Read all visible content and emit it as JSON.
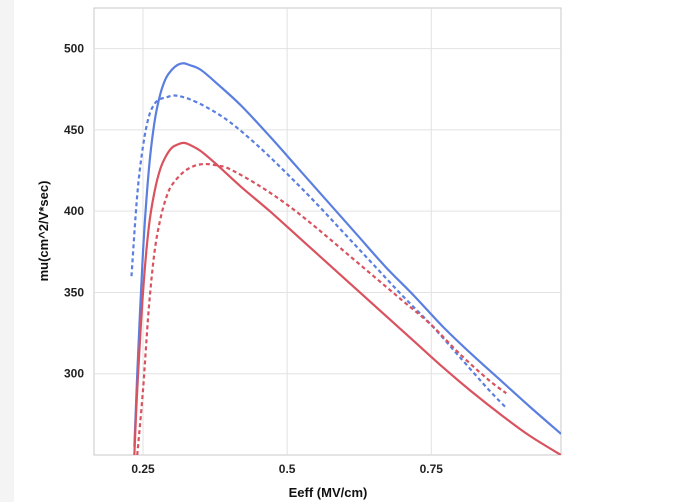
{
  "chart_data": {
    "type": "line",
    "title": "",
    "xlabel": "Eeff (MV/cm)",
    "ylabel": "mu(cm^2/V*sec)",
    "xlim": [
      0.165,
      0.975
    ],
    "ylim": [
      250,
      525
    ],
    "x_ticks": [
      0.25,
      0.5,
      0.75
    ],
    "x_tick_labels": [
      "0.25",
      "0.5",
      "0.75"
    ],
    "y_ticks": [
      300,
      350,
      400,
      450,
      500
    ],
    "y_tick_labels": [
      "300",
      "350",
      "400",
      "450",
      "500"
    ],
    "grid": true,
    "legend": "none",
    "series": [
      {
        "color": "#5b7fe0",
        "style": "solid",
        "x": [
          0.235,
          0.24,
          0.25,
          0.26,
          0.27,
          0.28,
          0.29,
          0.3,
          0.31,
          0.32,
          0.33,
          0.35,
          0.38,
          0.42,
          0.47,
          0.52,
          0.57,
          0.62,
          0.67,
          0.72,
          0.77,
          0.82,
          0.87,
          0.92,
          0.975
        ],
        "y": [
          255,
          300,
          375,
          425,
          455,
          472,
          482,
          487,
          490,
          491,
          490,
          487,
          478,
          465,
          446,
          426,
          406,
          386,
          366,
          348,
          329,
          312,
          296,
          280,
          263
        ]
      },
      {
        "color": "#5b7fe0",
        "style": "dashed",
        "x": [
          0.23,
          0.24,
          0.25,
          0.26,
          0.27,
          0.28,
          0.29,
          0.3,
          0.31,
          0.33,
          0.36,
          0.4,
          0.45,
          0.5,
          0.55,
          0.6,
          0.65,
          0.7,
          0.75,
          0.8,
          0.85,
          0.88
        ],
        "y": [
          360,
          410,
          440,
          458,
          466,
          469,
          470,
          471,
          471,
          469,
          464,
          455,
          440,
          423,
          405,
          386,
          367,
          348,
          330,
          310,
          290,
          279
        ]
      },
      {
        "color": "#d9535f",
        "style": "solid",
        "x": [
          0.235,
          0.24,
          0.25,
          0.26,
          0.27,
          0.28,
          0.29,
          0.3,
          0.31,
          0.32,
          0.33,
          0.35,
          0.38,
          0.42,
          0.47,
          0.52,
          0.57,
          0.62,
          0.67,
          0.72,
          0.77,
          0.82,
          0.87,
          0.92,
          0.975
        ],
        "y": [
          250,
          290,
          350,
          390,
          412,
          426,
          434,
          439,
          441,
          442,
          441,
          437,
          428,
          415,
          400,
          384,
          368,
          352,
          336,
          320,
          304,
          289,
          275,
          262,
          250
        ]
      },
      {
        "color": "#d9535f",
        "style": "dashed",
        "x": [
          0.24,
          0.25,
          0.26,
          0.27,
          0.28,
          0.29,
          0.3,
          0.32,
          0.34,
          0.36,
          0.38,
          0.4,
          0.45,
          0.5,
          0.55,
          0.6,
          0.65,
          0.7,
          0.75,
          0.8,
          0.85,
          0.88
        ],
        "y": [
          250,
          290,
          340,
          375,
          395,
          408,
          416,
          424,
          428,
          429,
          428,
          426,
          416,
          404,
          390,
          375,
          360,
          345,
          330,
          312,
          296,
          288
        ]
      }
    ]
  }
}
